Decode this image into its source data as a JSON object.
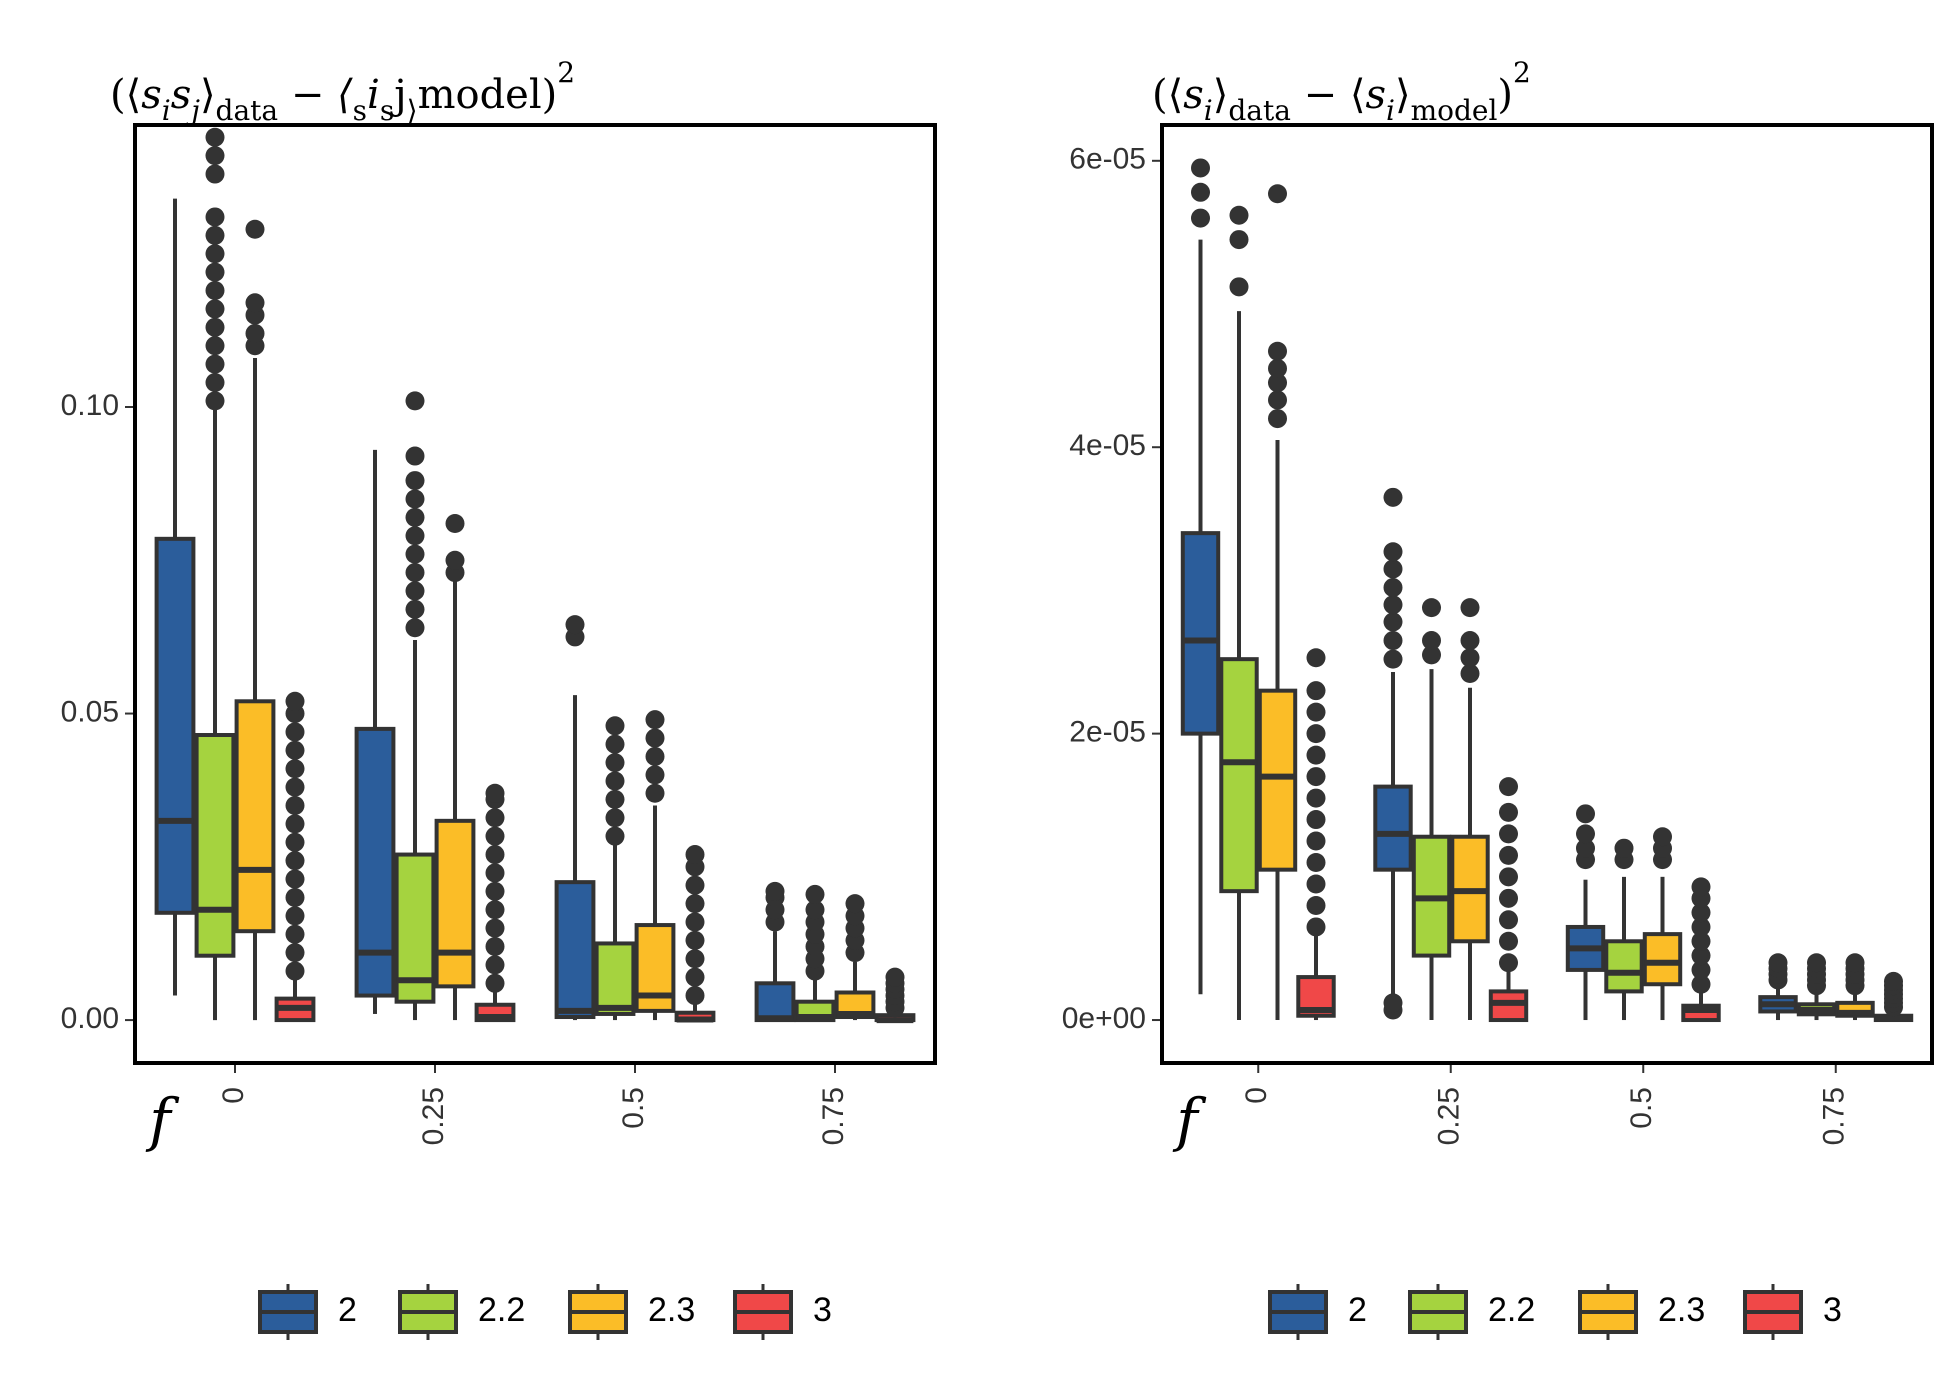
{
  "figure": {
    "x_axis_label": "f",
    "legend": [
      {
        "label": "2",
        "color": "#2b5d9b"
      },
      {
        "label": "2.2",
        "color": "#a5d33f"
      },
      {
        "label": "2.3",
        "color": "#fbbd27"
      },
      {
        "label": "3",
        "color": "#f04848"
      }
    ]
  },
  "chart_data": [
    {
      "type": "box",
      "title": "(⟨sᵢsⱼ⟩data − ⟨sᵢsⱼ⟩model)²",
      "title_parts": [
        "(⟨",
        "s",
        "i",
        "s",
        "j",
        "⟩",
        "data",
        " − ⟨",
        "s",
        "i",
        "s",
        "j",
        "⟩",
        "model",
        ")",
        "2"
      ],
      "categories": [
        "0",
        "0.25",
        "0.5",
        "0.75"
      ],
      "xlabel": "f",
      "ylim": [
        -0.007,
        0.146
      ],
      "yticks": [
        0.0,
        0.05,
        0.1
      ],
      "ytick_labels": [
        "0.00",
        "0.05",
        "0.10"
      ],
      "series": [
        {
          "name": "2",
          "color": "#2b5d9b",
          "boxes": [
            {
              "whislo": 0.004,
              "q1": 0.0175,
              "median": 0.0325,
              "q3": 0.0785,
              "whishi": 0.134,
              "outliers": []
            },
            {
              "whislo": 0.001,
              "q1": 0.004,
              "median": 0.011,
              "q3": 0.0475,
              "whishi": 0.093,
              "outliers": []
            },
            {
              "whislo": 0.0,
              "q1": 0.0005,
              "median": 0.0015,
              "q3": 0.0225,
              "whishi": 0.053,
              "outliers": [
                0.0625,
                0.0645
              ]
            },
            {
              "whislo": 0.0,
              "q1": 0.0,
              "median": 0.0003,
              "q3": 0.006,
              "whishi": 0.0145,
              "outliers": [
                0.016,
                0.018,
                0.02,
                0.021
              ]
            }
          ]
        },
        {
          "name": "2.2",
          "color": "#a5d33f",
          "boxes": [
            {
              "whislo": 0.0,
              "q1": 0.0105,
              "median": 0.018,
              "q3": 0.0465,
              "whishi": 0.1,
              "outliers": [
                0.101,
                0.104,
                0.107,
                0.11,
                0.113,
                0.116,
                0.119,
                0.122,
                0.125,
                0.128,
                0.131,
                0.138,
                0.141,
                0.144
              ]
            },
            {
              "whislo": 0.0,
              "q1": 0.003,
              "median": 0.0065,
              "q3": 0.027,
              "whishi": 0.062,
              "outliers": [
                0.064,
                0.067,
                0.07,
                0.073,
                0.076,
                0.079,
                0.082,
                0.085,
                0.088,
                0.092,
                0.101
              ]
            },
            {
              "whislo": 0.0,
              "q1": 0.001,
              "median": 0.002,
              "q3": 0.0125,
              "whishi": 0.029,
              "outliers": [
                0.03,
                0.033,
                0.036,
                0.039,
                0.042,
                0.045,
                0.048
              ]
            },
            {
              "whislo": 0.0,
              "q1": 0.0,
              "median": 0.0005,
              "q3": 0.003,
              "whishi": 0.0072,
              "outliers": [
                0.008,
                0.01,
                0.012,
                0.014,
                0.016,
                0.018,
                0.0205
              ]
            }
          ]
        },
        {
          "name": "2.3",
          "color": "#fbbd27",
          "boxes": [
            {
              "whislo": 0.0,
              "q1": 0.0145,
              "median": 0.0245,
              "q3": 0.052,
              "whishi": 0.108,
              "outliers": [
                0.11,
                0.112,
                0.115,
                0.117,
                0.129
              ]
            },
            {
              "whislo": 0.0,
              "q1": 0.0055,
              "median": 0.011,
              "q3": 0.0325,
              "whishi": 0.072,
              "outliers": [
                0.073,
                0.075,
                0.081
              ]
            },
            {
              "whislo": 0.0,
              "q1": 0.0015,
              "median": 0.004,
              "q3": 0.0155,
              "whishi": 0.035,
              "outliers": [
                0.037,
                0.04,
                0.043,
                0.046,
                0.049
              ]
            },
            {
              "whislo": 0.0,
              "q1": 0.0005,
              "median": 0.001,
              "q3": 0.0045,
              "whishi": 0.0095,
              "outliers": [
                0.011,
                0.013,
                0.015,
                0.017,
                0.019
              ]
            }
          ]
        },
        {
          "name": "3",
          "color": "#f04848",
          "boxes": [
            {
              "whislo": 0.0,
              "q1": 0.0,
              "median": 0.002,
              "q3": 0.0035,
              "whishi": 0.007,
              "outliers": [
                0.008,
                0.011,
                0.014,
                0.017,
                0.02,
                0.023,
                0.026,
                0.029,
                0.032,
                0.035,
                0.038,
                0.041,
                0.044,
                0.047,
                0.05,
                0.052
              ]
            },
            {
              "whislo": 0.0,
              "q1": 0.0,
              "median": 0.0005,
              "q3": 0.0025,
              "whishi": 0.005,
              "outliers": [
                0.006,
                0.009,
                0.012,
                0.015,
                0.018,
                0.021,
                0.024,
                0.027,
                0.03,
                0.033,
                0.036,
                0.037
              ]
            },
            {
              "whislo": 0.0,
              "q1": 0.0,
              "median": 0.0001,
              "q3": 0.0012,
              "whishi": 0.003,
              "outliers": [
                0.004,
                0.007,
                0.01,
                0.013,
                0.016,
                0.019,
                0.022,
                0.025,
                0.027
              ]
            },
            {
              "whislo": 0.0,
              "q1": 0.0,
              "median": 0.0,
              "q3": 0.0008,
              "whishi": 0.0015,
              "outliers": [
                0.002,
                0.003,
                0.004,
                0.005,
                0.006,
                0.007
              ]
            }
          ]
        }
      ]
    },
    {
      "type": "box",
      "title": "(⟨sᵢ⟩data − ⟨sᵢ⟩model)²",
      "title_parts": [
        "(⟨",
        "s",
        "i",
        "⟩",
        "data",
        " − ⟨",
        "s",
        "i",
        "⟩",
        "model",
        ")",
        "2"
      ],
      "categories": [
        "0",
        "0.25",
        "0.5",
        "0.75"
      ],
      "xlabel": "f",
      "ylim": [
        -3e-06,
        6.25e-05
      ],
      "yticks": [
        0.0,
        2e-05,
        4e-05,
        6e-05
      ],
      "ytick_labels": [
        "0e+00",
        "2e-05",
        "4e-05",
        "6e-05"
      ],
      "series": [
        {
          "name": "2",
          "color": "#2b5d9b",
          "boxes": [
            {
              "whislo": 1.8e-06,
              "q1": 2e-05,
              "median": 2.65e-05,
              "q3": 3.4e-05,
              "whishi": 5.45e-05,
              "outliers": [
                5.6e-05,
                5.78e-05,
                5.95e-05
              ]
            },
            {
              "whislo": 1e-06,
              "q1": 1.05e-05,
              "median": 1.3e-05,
              "q3": 1.63e-05,
              "whishi": 2.43e-05,
              "outliers": [
                7e-07,
                1.2e-06,
                2.52e-05,
                2.65e-05,
                2.78e-05,
                2.9e-05,
                3.02e-05,
                3.15e-05,
                3.27e-05,
                3.65e-05
              ]
            },
            {
              "whislo": 0.0,
              "q1": 3.5e-06,
              "median": 5e-06,
              "q3": 6.5e-06,
              "whishi": 9.8e-06,
              "outliers": [
                1.12e-05,
                1.2e-05,
                1.3e-05,
                1.44e-05
              ]
            },
            {
              "whislo": 0.0,
              "q1": 6e-07,
              "median": 1.1e-06,
              "q3": 1.6e-06,
              "whishi": 2.5e-06,
              "outliers": [
                2.8e-06,
                3.2e-06,
                3.6e-06,
                4e-06
              ]
            }
          ]
        },
        {
          "name": "2.2",
          "color": "#a5d33f",
          "boxes": [
            {
              "whislo": 0.0,
              "q1": 9e-06,
              "median": 1.8e-05,
              "q3": 2.52e-05,
              "whishi": 4.95e-05,
              "outliers": [
                5.12e-05,
                5.45e-05,
                5.62e-05
              ]
            },
            {
              "whislo": 0.0,
              "q1": 4.5e-06,
              "median": 8.5e-06,
              "q3": 1.28e-05,
              "whishi": 2.45e-05,
              "outliers": [
                2.55e-05,
                2.65e-05,
                2.88e-05
              ]
            },
            {
              "whislo": 0.0,
              "q1": 2e-06,
              "median": 3.3e-06,
              "q3": 5.5e-06,
              "whishi": 1e-05,
              "outliers": [
                1.12e-05,
                1.2e-05
              ]
            },
            {
              "whislo": 0.0,
              "q1": 4e-07,
              "median": 7e-07,
              "q3": 1.1e-06,
              "whishi": 2e-06,
              "outliers": [
                2.4e-06,
                2.8e-06,
                3.2e-06,
                3.6e-06,
                4e-06
              ]
            }
          ]
        },
        {
          "name": "2.3",
          "color": "#fbbd27",
          "boxes": [
            {
              "whislo": 0.0,
              "q1": 1.05e-05,
              "median": 1.7e-05,
              "q3": 2.3e-05,
              "whishi": 4.05e-05,
              "outliers": [
                4.2e-05,
                4.33e-05,
                4.45e-05,
                4.55e-05,
                4.67e-05,
                5.77e-05
              ]
            },
            {
              "whislo": 0.0,
              "q1": 5.5e-06,
              "median": 9e-06,
              "q3": 1.28e-05,
              "whishi": 2.32e-05,
              "outliers": [
                2.42e-05,
                2.53e-05,
                2.65e-05,
                2.88e-05
              ]
            },
            {
              "whislo": 0.0,
              "q1": 2.5e-06,
              "median": 4e-06,
              "q3": 6e-06,
              "whishi": 1e-05,
              "outliers": [
                1.12e-05,
                1.2e-05,
                1.28e-05
              ]
            },
            {
              "whislo": 0.0,
              "q1": 3e-07,
              "median": 5e-07,
              "q3": 1.2e-06,
              "whishi": 2e-06,
              "outliers": [
                2.4e-06,
                2.8e-06,
                3.2e-06,
                3.6e-06,
                4e-06
              ]
            }
          ]
        },
        {
          "name": "3",
          "color": "#f04848",
          "boxes": [
            {
              "whislo": 0.0,
              "q1": 3e-07,
              "median": 7e-07,
              "q3": 3e-06,
              "whishi": 6e-06,
              "outliers": [
                6.5e-06,
                8e-06,
                9.5e-06,
                1.1e-05,
                1.25e-05,
                1.4e-05,
                1.55e-05,
                1.7e-05,
                1.85e-05,
                2e-05,
                2.15e-05,
                2.3e-05,
                2.53e-05
              ]
            },
            {
              "whislo": 0.0,
              "q1": 0.0,
              "median": 1.2e-06,
              "q3": 2e-06,
              "whishi": 3.5e-06,
              "outliers": [
                4e-06,
                5.5e-06,
                7e-06,
                8.5e-06,
                1e-05,
                1.15e-05,
                1.3e-05,
                1.45e-05,
                1.63e-05
              ]
            },
            {
              "whislo": 0.0,
              "q1": 0.0,
              "median": 7e-07,
              "q3": 1e-06,
              "whishi": 2e-06,
              "outliers": [
                2.5e-06,
                3.5e-06,
                4.5e-06,
                5.5e-06,
                6.5e-06,
                7.5e-06,
                8.5e-06,
                9.3e-06
              ]
            },
            {
              "whislo": 0.0,
              "q1": 0.0,
              "median": 1e-07,
              "q3": 3e-07,
              "whishi": 7e-07,
              "outliers": [
                9e-07,
                1.2e-06,
                1.5e-06,
                1.8e-06,
                2.1e-06,
                2.4e-06,
                2.7e-06
              ]
            }
          ]
        }
      ]
    }
  ]
}
